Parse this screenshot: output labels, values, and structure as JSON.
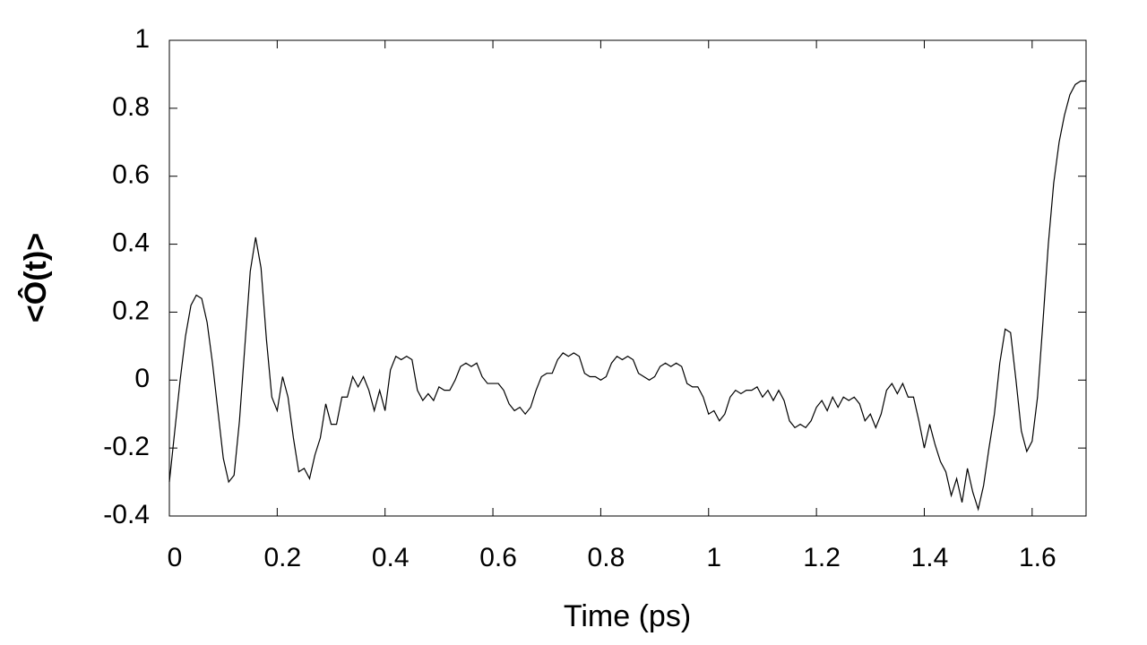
{
  "chart_data": {
    "type": "line",
    "x_label": "Time (ps)",
    "y_label": "<Ô(t)>",
    "xlim": [
      0,
      1.7
    ],
    "ylim": [
      -0.4,
      1
    ],
    "xticks": [
      0,
      0.2,
      0.4,
      0.6,
      0.8,
      1,
      1.2,
      1.4,
      1.6
    ],
    "yticks": [
      -0.4,
      -0.2,
      0,
      0.2,
      0.4,
      0.6,
      0.8,
      1
    ],
    "color": "#000000",
    "x": [
      0,
      0.01,
      0.02,
      0.03,
      0.04,
      0.05,
      0.06,
      0.07,
      0.08,
      0.09,
      0.1,
      0.11,
      0.12,
      0.13,
      0.14,
      0.15,
      0.16,
      0.17,
      0.18,
      0.19,
      0.2,
      0.21,
      0.22,
      0.23,
      0.24,
      0.25,
      0.26,
      0.27,
      0.28,
      0.29,
      0.3,
      0.31,
      0.32,
      0.33,
      0.34,
      0.35,
      0.36,
      0.37,
      0.38,
      0.39,
      0.4,
      0.41,
      0.42,
      0.43,
      0.44,
      0.45,
      0.46,
      0.47,
      0.48,
      0.49,
      0.5,
      0.51,
      0.52,
      0.53,
      0.54,
      0.55,
      0.56,
      0.57,
      0.58,
      0.59,
      0.6,
      0.61,
      0.62,
      0.63,
      0.64,
      0.65,
      0.66,
      0.67,
      0.68,
      0.69,
      0.7,
      0.71,
      0.72,
      0.73,
      0.74,
      0.75,
      0.76,
      0.77,
      0.78,
      0.79,
      0.8,
      0.81,
      0.82,
      0.83,
      0.84,
      0.85,
      0.86,
      0.87,
      0.88,
      0.89,
      0.9,
      0.91,
      0.92,
      0.93,
      0.94,
      0.95,
      0.96,
      0.97,
      0.98,
      0.99,
      1,
      1.01,
      1.02,
      1.03,
      1.04,
      1.05,
      1.06,
      1.07,
      1.08,
      1.09,
      1.1,
      1.11,
      1.12,
      1.13,
      1.14,
      1.15,
      1.16,
      1.17,
      1.18,
      1.19,
      1.2,
      1.21,
      1.22,
      1.23,
      1.24,
      1.25,
      1.26,
      1.27,
      1.28,
      1.29,
      1.3,
      1.31,
      1.32,
      1.33,
      1.34,
      1.35,
      1.36,
      1.37,
      1.38,
      1.39,
      1.4,
      1.41,
      1.42,
      1.43,
      1.44,
      1.45,
      1.46,
      1.47,
      1.48,
      1.49,
      1.5,
      1.51,
      1.52,
      1.53,
      1.54,
      1.55,
      1.56,
      1.57,
      1.58,
      1.59,
      1.6,
      1.61,
      1.62,
      1.63,
      1.64,
      1.65,
      1.66,
      1.67,
      1.68,
      1.69,
      1.7
    ],
    "values": [
      -0.3,
      -0.15,
      0,
      0.13,
      0.22,
      0.25,
      0.24,
      0.17,
      0.05,
      -0.09,
      -0.23,
      -0.3,
      -0.28,
      -0.12,
      0.1,
      0.32,
      0.42,
      0.33,
      0.12,
      -0.05,
      -0.09,
      0.01,
      -0.05,
      -0.17,
      -0.27,
      -0.26,
      -0.29,
      -0.22,
      -0.17,
      -0.07,
      -0.13,
      -0.13,
      -0.05,
      -0.05,
      0.01,
      -0.02,
      0.01,
      -0.03,
      -0.09,
      -0.03,
      -0.09,
      0.03,
      0.07,
      0.06,
      0.07,
      0.06,
      -0.03,
      -0.06,
      -0.04,
      -0.06,
      -0.02,
      -0.03,
      -0.03,
      0,
      0.04,
      0.05,
      0.04,
      0.05,
      0.01,
      -0.01,
      -0.01,
      -0.01,
      -0.03,
      -0.07,
      -0.09,
      -0.08,
      -0.1,
      -0.08,
      -0.03,
      0.01,
      0.02,
      0.02,
      0.06,
      0.08,
      0.07,
      0.08,
      0.07,
      0.02,
      0.01,
      0.01,
      0,
      0.01,
      0.05,
      0.07,
      0.06,
      0.07,
      0.06,
      0.02,
      0.01,
      0,
      0.01,
      0.04,
      0.05,
      0.04,
      0.05,
      0.04,
      -0.01,
      -0.02,
      -0.02,
      -0.05,
      -0.1,
      -0.09,
      -0.12,
      -0.1,
      -0.05,
      -0.03,
      -0.04,
      -0.03,
      -0.03,
      -0.02,
      -0.05,
      -0.03,
      -0.06,
      -0.03,
      -0.06,
      -0.12,
      -0.14,
      -0.13,
      -0.14,
      -0.12,
      -0.08,
      -0.06,
      -0.09,
      -0.05,
      -0.08,
      -0.05,
      -0.06,
      -0.05,
      -0.07,
      -0.12,
      -0.1,
      -0.14,
      -0.1,
      -0.03,
      -0.01,
      -0.04,
      -0.01,
      -0.05,
      -0.05,
      -0.12,
      -0.2,
      -0.13,
      -0.19,
      -0.24,
      -0.27,
      -0.34,
      -0.29,
      -0.36,
      -0.26,
      -0.33,
      -0.38,
      -0.31,
      -0.2,
      -0.1,
      0.05,
      0.15,
      0.14,
      0,
      -0.15,
      -0.21,
      -0.18,
      -0.05,
      0.17,
      0.4,
      0.58,
      0.7,
      0.78,
      0.84,
      0.87,
      0.88,
      0.88
    ]
  }
}
